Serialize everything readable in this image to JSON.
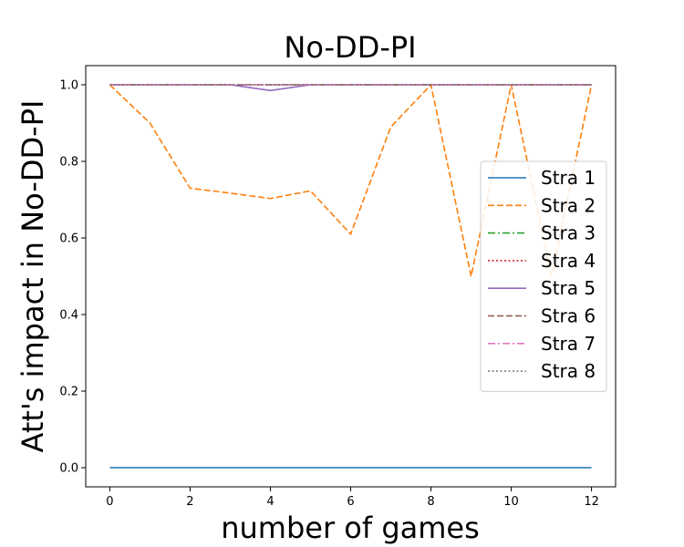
{
  "chart_data": {
    "type": "line",
    "title": "No-DD-PI",
    "xlabel": "number of games",
    "ylabel": "Att's impact in No-DD-PI",
    "x": [
      0,
      1,
      2,
      3,
      4,
      5,
      6,
      7,
      8,
      9,
      10,
      11,
      12
    ],
    "xlim": [
      -0.6,
      12.6
    ],
    "ylim": [
      -0.05,
      1.05
    ],
    "xticks": [
      0,
      2,
      4,
      6,
      8,
      10,
      12
    ],
    "xtick_labels": [
      "0",
      "2",
      "4",
      "6",
      "8",
      "10",
      "12"
    ],
    "yticks": [
      0.0,
      0.2,
      0.4,
      0.6,
      0.8,
      1.0
    ],
    "ytick_labels": [
      "0.0",
      "0.2",
      "0.4",
      "0.6",
      "0.8",
      "1.0"
    ],
    "grid": false,
    "legend_position": "right",
    "series": [
      {
        "name": "Stra 1",
        "color": "#1f77b4",
        "dash": "solid",
        "values": [
          0,
          0,
          0,
          0,
          0,
          0,
          0,
          0,
          0,
          0,
          0,
          0,
          0
        ]
      },
      {
        "name": "Stra 2",
        "color": "#ff7f0e",
        "dash": "dashed",
        "values": [
          1.0,
          0.9,
          0.73,
          0.717,
          0.703,
          0.723,
          0.61,
          0.89,
          1.0,
          0.5,
          1.0,
          0.5,
          1.0
        ]
      },
      {
        "name": "Stra 3",
        "color": "#2ca02c",
        "dash": "dashdot",
        "values": [
          1,
          1,
          1,
          1,
          1,
          1,
          1,
          1,
          1,
          1,
          1,
          1,
          1
        ]
      },
      {
        "name": "Stra 4",
        "color": "#d62728",
        "dash": "dotted",
        "values": [
          1,
          1,
          1,
          1,
          1,
          1,
          1,
          1,
          1,
          1,
          1,
          1,
          1
        ]
      },
      {
        "name": "Stra 5",
        "color": "#9467bd",
        "dash": "solid",
        "values": [
          1,
          1,
          1,
          1,
          0.985,
          1,
          1,
          1,
          1,
          1,
          1,
          1,
          1
        ]
      },
      {
        "name": "Stra 6",
        "color": "#8c564b",
        "dash": "dashed",
        "values": [
          1,
          1,
          1,
          1,
          1,
          1,
          1,
          1,
          1,
          1,
          1,
          1,
          1
        ]
      },
      {
        "name": "Stra 7",
        "color": "#e377c2",
        "dash": "dashdot",
        "values": [
          1,
          1,
          1,
          1,
          1,
          1,
          1,
          1,
          1,
          1,
          1,
          1,
          1
        ]
      },
      {
        "name": "Stra 8",
        "color": "#7f7f7f",
        "dash": "dotted",
        "values": [
          1,
          1,
          1,
          1,
          1,
          1,
          1,
          1,
          1,
          1,
          1,
          1,
          1
        ]
      }
    ]
  }
}
